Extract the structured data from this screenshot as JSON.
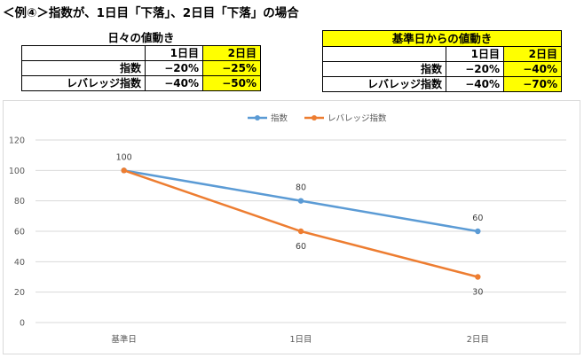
{
  "heading": "＜例④＞指数が、1日目「下落」、2日目「下落」の場合",
  "table_daily": {
    "title": "日々の値動き",
    "columns": [
      "1日目",
      "2日目"
    ],
    "rows": [
      {
        "label": "指数",
        "values": [
          "−20%",
          "−25%"
        ]
      },
      {
        "label": "レバレッジ指数",
        "values": [
          "−40%",
          "−50%"
        ]
      }
    ]
  },
  "table_base": {
    "title": "基準日からの値動き",
    "columns": [
      "1日目",
      "2日目"
    ],
    "rows": [
      {
        "label": "指数",
        "values": [
          "−20%",
          "−40%"
        ]
      },
      {
        "label": "レバレッジ指数",
        "values": [
          "−40%",
          "−70%"
        ]
      }
    ]
  },
  "colors": {
    "highlight": "#ffff00",
    "index_series": "#5b9bd5",
    "leverage_series": "#ed7d31",
    "gridline": "#d9d9d9",
    "tick_text": "#595959"
  },
  "chart_data": {
    "type": "line",
    "categories": [
      "基準日",
      "1日目",
      "2日目"
    ],
    "series": [
      {
        "name": "指数",
        "values": [
          100,
          80,
          60
        ],
        "color": "#5b9bd5"
      },
      {
        "name": "レバレッジ指数",
        "values": [
          100,
          60,
          30
        ],
        "color": "#ed7d31"
      }
    ],
    "ylim": [
      0,
      120
    ],
    "yticks": [
      0,
      20,
      40,
      60,
      80,
      100,
      120
    ],
    "grid": true,
    "legend_position": "top-center",
    "data_labels": true
  }
}
